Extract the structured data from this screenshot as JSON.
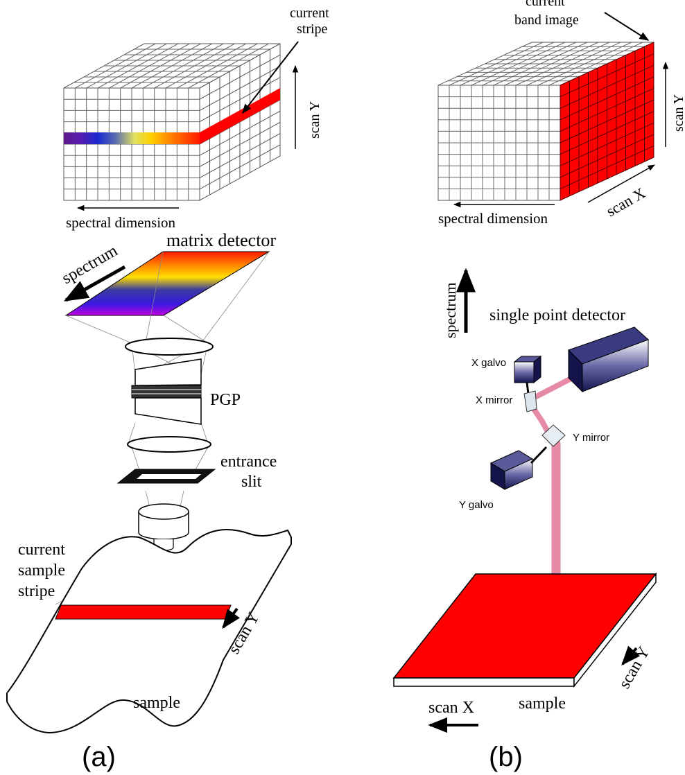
{
  "panel_a": {
    "caption": "(a)",
    "cube_labels": {
      "current_stripe_line1": "current",
      "current_stripe_line2": "stripe",
      "scan_y": "scan Y",
      "spectral_dimension": "spectral dimension"
    },
    "optics_labels": {
      "spectrum": "spectrum",
      "matrix_detector": "matrix detector",
      "pgp": "PGP",
      "entrance_line1": "entrance",
      "entrance_line2": "slit",
      "current_sample_line1": "current",
      "current_sample_line2": "sample",
      "current_sample_line3": "stripe",
      "scan_y": "scan Y",
      "sample": "sample"
    }
  },
  "panel_b": {
    "caption": "(b)",
    "cube_labels": {
      "band_image_line1": "current",
      "band_image_line2": "band image",
      "scan_y": "scan Y",
      "scan_x": "scan X",
      "spectral_dimension": "spectral dimension"
    },
    "optics_labels": {
      "spectrum": "spectrum",
      "single_point_detector": "single point detector",
      "x_galvo": "X galvo",
      "x_mirror": "X mirror",
      "y_mirror": "Y mirror",
      "y_galvo": "Y galvo",
      "scan_y": "scan Y",
      "scan_x": "scan X",
      "sample": "sample"
    }
  },
  "colors": {
    "highlight_red": "#ff0000",
    "beam_pink": "#e68aa6",
    "device_navy": "#1a1a66"
  }
}
